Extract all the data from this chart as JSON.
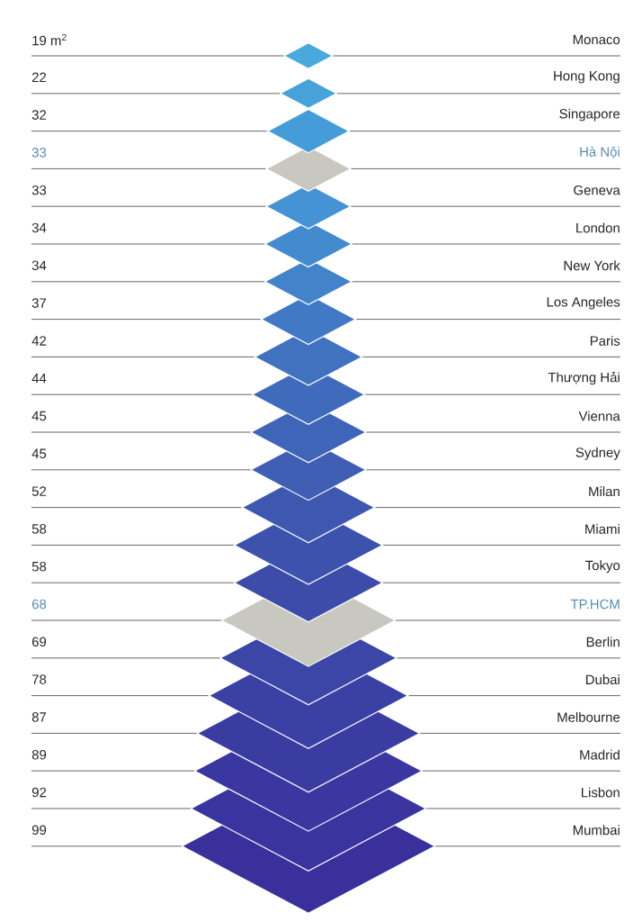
{
  "chart_data": {
    "type": "other",
    "categories": [
      "Monaco",
      "Hong Kong",
      "Singapore",
      "Hà Nội",
      "Geneva",
      "London",
      "New York",
      "Los Angeles",
      "Paris",
      "Thượng Hải",
      "Vienna",
      "Sydney",
      "Milan",
      "Miami",
      "Tokyo",
      "TP.HCM",
      "Berlin",
      "Dubai",
      "Melbourne",
      "Madrid",
      "Lisbon",
      "Mumbai"
    ],
    "values": [
      19,
      22,
      32,
      33,
      33,
      34,
      34,
      37,
      42,
      44,
      45,
      45,
      52,
      58,
      58,
      68,
      69,
      78,
      87,
      89,
      92,
      99
    ],
    "value_labels": [
      "19 m$^{2}$",
      "22",
      "32",
      "33",
      "33",
      "34",
      "34",
      "37",
      "42",
      "44",
      "45",
      "45",
      "52",
      "58",
      "58",
      "68",
      "69",
      "78",
      "87",
      "89",
      "92",
      "99"
    ],
    "colors": [
      "#4aa8dc",
      "#48a2da",
      "#469cd8",
      "#c8c8c0",
      "#4592d4",
      "#448ace",
      "#4383ca",
      "#4279c4",
      "#4172c0",
      "#406bbc",
      "#3f65b8",
      "#3f5eb4",
      "#3e58b0",
      "#3d52ac",
      "#3d4ca8",
      "#c8c8c0",
      "#3c46a6",
      "#3b40a4",
      "#3b3ca2",
      "#3a38a0",
      "#3a349e",
      "#39309c"
    ]
  }
}
